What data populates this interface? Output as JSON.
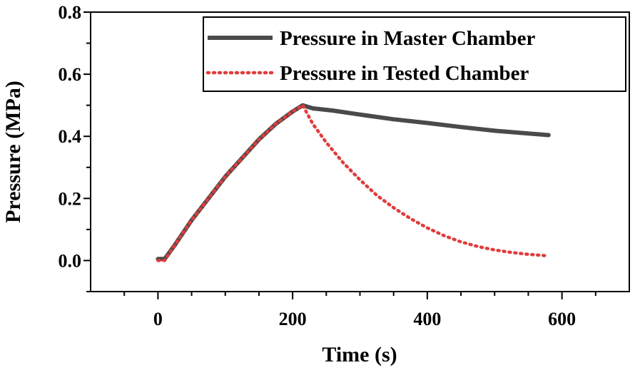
{
  "chart_data": {
    "type": "line",
    "xlabel": "Time (s)",
    "ylabel": "Pressure (MPa)",
    "xlim": [
      -100,
      700
    ],
    "ylim": [
      -0.1,
      0.8
    ],
    "xticks": [
      0,
      200,
      400,
      600
    ],
    "xtick_labels": [
      "0",
      "200",
      "400",
      "600"
    ],
    "yticks": [
      0.0,
      0.2,
      0.4,
      0.6,
      0.8
    ],
    "ytick_labels": [
      "0.0",
      "0.2",
      "0.4",
      "0.6",
      "0.8"
    ],
    "grid": false,
    "legend_position": "top-right",
    "series": [
      {
        "name": "Pressure in Master Chamber",
        "color": "#4a4a4a",
        "style": "solid",
        "x": [
          0,
          10,
          25,
          50,
          75,
          100,
          125,
          150,
          175,
          200,
          215,
          230,
          260,
          300,
          350,
          400,
          450,
          500,
          550,
          580
        ],
        "y": [
          0.005,
          0.005,
          0.05,
          0.13,
          0.2,
          0.27,
          0.33,
          0.39,
          0.44,
          0.48,
          0.5,
          0.49,
          0.483,
          0.47,
          0.455,
          0.443,
          0.43,
          0.418,
          0.409,
          0.404
        ]
      },
      {
        "name": "Pressure in Tested Chamber",
        "color": "#e03c3c",
        "style": "dotted",
        "x": [
          0,
          10,
          25,
          50,
          75,
          100,
          125,
          150,
          175,
          200,
          215,
          230,
          250,
          275,
          300,
          325,
          350,
          375,
          400,
          425,
          450,
          475,
          500,
          525,
          550,
          580
        ],
        "y": [
          0.0,
          0.0,
          0.05,
          0.13,
          0.2,
          0.27,
          0.33,
          0.39,
          0.44,
          0.48,
          0.5,
          0.44,
          0.38,
          0.315,
          0.26,
          0.21,
          0.17,
          0.135,
          0.105,
          0.08,
          0.06,
          0.045,
          0.034,
          0.026,
          0.02,
          0.015
        ]
      }
    ]
  }
}
